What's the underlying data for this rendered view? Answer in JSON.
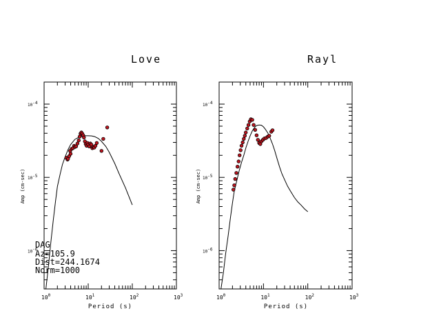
{
  "chart_data": [
    {
      "type": "scatter",
      "title": "Love",
      "xlabel": "Period (s)",
      "ylabel": "Amp (cm-sec)",
      "xscale": "log",
      "yscale": "log",
      "xlim": [
        1,
        1000
      ],
      "ylim": [
        3e-07,
        0.0002
      ],
      "x_ticks": [
        {
          "base": "10",
          "exp": "0"
        },
        {
          "base": "10",
          "exp": "1"
        },
        {
          "base": "10",
          "exp": "2"
        },
        {
          "base": "10",
          "exp": "3"
        }
      ],
      "y_ticks": [
        {
          "base": "10",
          "exp": "-4"
        },
        {
          "base": "10",
          "exp": "-5"
        },
        {
          "base": "10",
          "exp": "-6"
        }
      ],
      "info_lines": [
        "DAG",
        "Az=105.9",
        "Dist=244.1674",
        "Norm=1000"
      ],
      "colors": {
        "marker_fill": "#c0141e",
        "marker_edge": "#000000",
        "curve": "#000000"
      },
      "series": [
        {
          "kind": "curve",
          "x": [
            1.1,
            1.25,
            1.4,
            1.6,
            1.8,
            2.0,
            2.3,
            2.6,
            3.0,
            3.5,
            4.0,
            5.0,
            6.0,
            7.0,
            8.0,
            10.0,
            12.0,
            14.0,
            17.0,
            20.0,
            25.0,
            30.0,
            40.0,
            50.0,
            70.0,
            100.0
          ],
          "y": [
            3e-07,
            6e-07,
            1.2e-06,
            2.5e-06,
            4.5e-06,
            7.5e-06,
            1.1e-05,
            1.5e-05,
            1.9e-05,
            2.4e-05,
            2.8e-05,
            3.3e-05,
            3.5e-05,
            3.6e-05,
            3.7e-05,
            3.7e-05,
            3.68e-05,
            3.6e-05,
            3.4e-05,
            3.1e-05,
            2.65e-05,
            2.2e-05,
            1.55e-05,
            1.13e-05,
            7.2e-06,
            4.2e-06
          ]
        },
        {
          "kind": "points",
          "x": [
            3.2,
            3.4,
            3.5,
            3.7,
            3.9,
            4.0,
            4.2,
            4.5,
            4.8,
            5.0,
            5.3,
            5.7,
            6.1,
            6.4,
            6.7,
            7.0,
            7.3,
            7.7,
            8.0,
            8.4,
            8.8,
            9.2,
            9.6,
            10.0,
            10.6,
            11.2,
            11.8,
            12.4,
            13.0,
            13.7,
            14.6,
            15.6,
            20.0,
            22.0,
            27.0
          ],
          "y": [
            1.85e-05,
            1.75e-05,
            1.8e-05,
            1.95e-05,
            2.3e-05,
            2.1e-05,
            2.45e-05,
            2.5e-05,
            2.7e-05,
            2.6e-05,
            2.65e-05,
            2.9e-05,
            3.2e-05,
            3.6e-05,
            3.95e-05,
            4.1e-05,
            3.95e-05,
            3.75e-05,
            3.5e-05,
            3.1e-05,
            2.85e-05,
            2.7e-05,
            2.95e-05,
            2.8e-05,
            2.65e-05,
            2.9e-05,
            2.8e-05,
            2.5e-05,
            2.6e-05,
            2.55e-05,
            2.7e-05,
            2.95e-05,
            2.3e-05,
            3.35e-05,
            4.8e-05
          ]
        }
      ]
    },
    {
      "type": "scatter",
      "title": "Rayl",
      "xlabel": "Period (s)",
      "ylabel": "Amp (cm-sec)",
      "xscale": "log",
      "yscale": "log",
      "xlim": [
        1,
        1000
      ],
      "ylim": [
        3e-07,
        0.0002
      ],
      "x_ticks": [
        {
          "base": "10",
          "exp": "0"
        },
        {
          "base": "10",
          "exp": "1"
        },
        {
          "base": "10",
          "exp": "2"
        },
        {
          "base": "10",
          "exp": "3"
        }
      ],
      "y_ticks": [
        {
          "base": "10",
          "exp": "-4"
        },
        {
          "base": "10",
          "exp": "-5"
        },
        {
          "base": "10",
          "exp": "-6"
        }
      ],
      "colors": {
        "marker_fill": "#c0141e",
        "marker_edge": "#000000",
        "curve": "#000000"
      },
      "series": [
        {
          "kind": "curve",
          "x": [
            1.1,
            1.25,
            1.4,
            1.6,
            1.8,
            2.0,
            2.2,
            2.5,
            2.8,
            3.2,
            3.6,
            4.0,
            4.5,
            5.0,
            5.6,
            6.3,
            7.0,
            8.0,
            9.0,
            10.0,
            11.0,
            12.5,
            14.0,
            16.0,
            18.0,
            20.0,
            23.0,
            26.0,
            30.0,
            35.0,
            40.0,
            50.0,
            60.0,
            70.0,
            85.0,
            100.0
          ],
          "y": [
            3e-07,
            5e-07,
            9e-07,
            1.6e-06,
            2.8e-06,
            4.5e-06,
            6.5e-06,
            9e-06,
            1.2e-05,
            1.6e-05,
            2e-05,
            2.5e-05,
            3.1e-05,
            3.7e-05,
            4.3e-05,
            4.8e-05,
            5.1e-05,
            5.2e-05,
            5.15e-05,
            4.9e-05,
            4.55e-05,
            4.05e-05,
            3.5e-05,
            2.85e-05,
            2.3e-05,
            1.85e-05,
            1.4e-05,
            1.13e-05,
            9.3e-06,
            7.6e-06,
            6.6e-06,
            5.3e-06,
            4.6e-06,
            4.2e-06,
            3.7e-06,
            3.4e-06
          ]
        },
        {
          "kind": "points",
          "x": [
            2.1,
            2.2,
            2.3,
            2.45,
            2.6,
            2.75,
            2.9,
            3.05,
            3.2,
            3.4,
            3.6,
            3.8,
            4.0,
            4.3,
            4.6,
            4.9,
            5.2,
            5.6,
            6.0,
            6.5,
            7.0,
            7.5,
            8.0,
            8.5,
            9.0,
            9.7,
            10.5,
            11.5,
            12.5,
            13.5,
            15.0,
            16.0
          ],
          "y": [
            6.8e-06,
            7.8e-06,
            9.5e-06,
            1.15e-05,
            1.4e-05,
            1.65e-05,
            2e-05,
            2.35e-05,
            2.7e-05,
            3e-05,
            3.35e-05,
            3.7e-05,
            4.1e-05,
            4.65e-05,
            5.2e-05,
            5.8e-05,
            6.2e-05,
            6.1e-05,
            5.2e-05,
            4.45e-05,
            3.75e-05,
            3.25e-05,
            2.95e-05,
            2.85e-05,
            3.1e-05,
            3.25e-05,
            3.4e-05,
            3.45e-05,
            3.6e-05,
            3.7e-05,
            4.2e-05,
            4.4e-05
          ]
        }
      ]
    }
  ]
}
